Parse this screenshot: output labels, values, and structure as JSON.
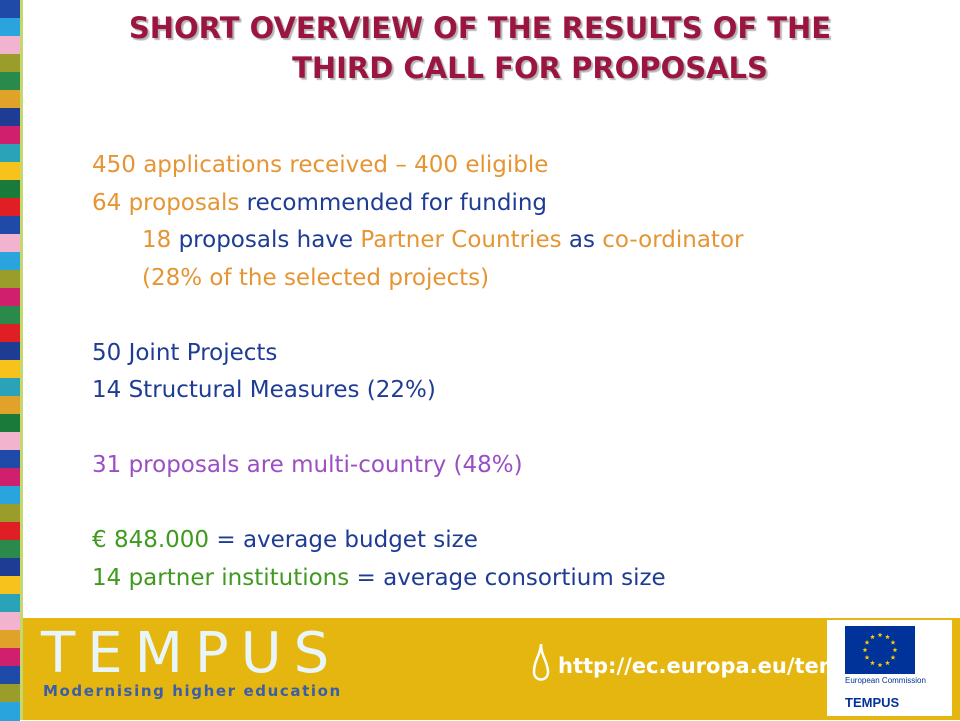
{
  "colors": {
    "title": "#9a1640",
    "orange": "#e59533",
    "navy": "#1e3c94",
    "purple": "#9b4fc4",
    "green": "#3f9a1e",
    "footer_bg": "#e5b60f",
    "stripe_line": "#c5d86d"
  },
  "stripes": [
    "#1f4aa8",
    "#29a4dd",
    "#f2b3cf",
    "#9a9d2a",
    "#2a8a4b",
    "#e1a22a",
    "#1e3c94",
    "#d01f6c",
    "#2aa3b8",
    "#f6c21b",
    "#1a7a3a",
    "#e01f24",
    "#1f4aa8",
    "#f2b3cf",
    "#29a4dd",
    "#9a9d2a",
    "#d01f6c",
    "#2a8a4b",
    "#e01f24",
    "#1e3c94",
    "#f6c21b",
    "#2aa3b8",
    "#e1a22a",
    "#1a7a3a",
    "#f2b3cf",
    "#1f4aa8",
    "#d01f6c",
    "#29a4dd",
    "#9a9d2a",
    "#e01f24",
    "#2a8a4b",
    "#1e3c94",
    "#f6c21b",
    "#2aa3b8",
    "#f2b3cf",
    "#e1a22a",
    "#d01f6c",
    "#1f4aa8",
    "#9a9d2a",
    "#29a4dd"
  ],
  "title": {
    "line1": "SHORT OVERVIEW OF THE RESULTS OF THE",
    "line2": "THIRD CALL FOR PROPOSALS"
  },
  "lines": [
    {
      "indent": false,
      "top": 0,
      "segments": [
        {
          "text": "450 applications received – 400 eligible",
          "color": "orange"
        }
      ]
    },
    {
      "indent": false,
      "top": 1,
      "segments": [
        {
          "text": "64 proposals ",
          "color": "orange"
        },
        {
          "text": "recommended for funding",
          "color": "navy"
        }
      ]
    },
    {
      "indent": true,
      "top": 2,
      "segments": [
        {
          "text": "18 ",
          "color": "orange"
        },
        {
          "text": "proposals have ",
          "color": "navy"
        },
        {
          "text": "Partner Countries",
          "color": "orange"
        },
        {
          "text": " as ",
          "color": "navy"
        },
        {
          "text": "co-ordinator",
          "color": "orange"
        }
      ]
    },
    {
      "indent": true,
      "top": 3,
      "segments": [
        {
          "text": "(28% of the selected projects)",
          "color": "orange"
        }
      ]
    },
    {
      "indent": false,
      "top": 5,
      "segments": [
        {
          "text": "50 Joint Projects",
          "color": "navy"
        }
      ]
    },
    {
      "indent": false,
      "top": 6,
      "segments": [
        {
          "text": "14 Structural Measures (22%)",
          "color": "navy"
        }
      ]
    },
    {
      "indent": false,
      "top": 8,
      "segments": [
        {
          "text": "31 proposals are multi-country (48%)",
          "color": "purple"
        }
      ]
    },
    {
      "indent": false,
      "top": 10,
      "segments": [
        {
          "text": "€ 848.000",
          "color": "green"
        },
        {
          "text": " = average budget size",
          "color": "navy"
        }
      ]
    },
    {
      "indent": false,
      "top": 11,
      "segments": [
        {
          "text": "14 partner institutions",
          "color": "green"
        },
        {
          "text": " = average consortium size",
          "color": "navy"
        }
      ]
    }
  ],
  "footer": {
    "brand": "TEMPUS",
    "tagline": "Modernising higher education",
    "url": "http://ec.europa.eu/tempus",
    "eu_label": "European Commission",
    "eu_brand": "TEMPUS"
  }
}
